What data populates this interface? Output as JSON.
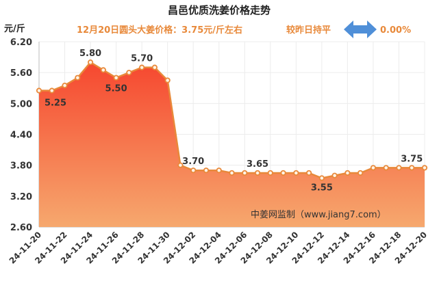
{
  "chart_data": {
    "type": "area",
    "title": "昌邑优质洗姜价格走势",
    "ylabel": "元/斤",
    "price_note": "12月20日圆头大姜价格：3.75元/斤左右",
    "compare_text": "较昨日持平",
    "change_pct": "0.00%",
    "watermark": "中姜网监制（www.jiang7.com）",
    "ylim": [
      2.6,
      6.2
    ],
    "yticks": [
      "6.20",
      "5.60",
      "5.00",
      "4.40",
      "3.80",
      "3.20",
      "2.60"
    ],
    "x": [
      "24-11-20",
      "24-11-21",
      "24-11-22",
      "24-11-23",
      "24-11-24",
      "24-11-25",
      "24-11-26",
      "24-11-27",
      "24-11-28",
      "24-11-29",
      "24-11-30",
      "24-12-01",
      "24-12-02",
      "24-12-03",
      "24-12-04",
      "24-12-05",
      "24-12-06",
      "24-12-07",
      "24-12-08",
      "24-12-09",
      "24-12-10",
      "24-12-11",
      "24-12-12",
      "24-12-13",
      "24-12-14",
      "24-12-15",
      "24-12-16",
      "24-12-17",
      "24-12-18",
      "24-12-19",
      "24-12-20"
    ],
    "xtick_labels": [
      "24-11-20",
      "24-11-22",
      "24-11-24",
      "24-11-26",
      "24-11-28",
      "24-11-30",
      "24-12-02",
      "24-12-04",
      "24-12-06",
      "24-12-08",
      "24-12-10",
      "24-12-12",
      "24-12-14",
      "24-12-16",
      "24-12-18",
      "24-12-20"
    ],
    "values": [
      5.25,
      5.25,
      5.35,
      5.5,
      5.8,
      5.65,
      5.5,
      5.6,
      5.7,
      5.7,
      5.45,
      3.8,
      3.7,
      3.7,
      3.7,
      3.65,
      3.65,
      3.65,
      3.65,
      3.65,
      3.65,
      3.65,
      3.55,
      3.6,
      3.65,
      3.65,
      3.75,
      3.75,
      3.75,
      3.75,
      3.75
    ],
    "data_labels": [
      {
        "index": 0,
        "text": "5.25"
      },
      {
        "index": 4,
        "text": "5.80"
      },
      {
        "index": 6,
        "text": "5.50"
      },
      {
        "index": 8,
        "text": "5.70"
      },
      {
        "index": 12,
        "text": "3.70"
      },
      {
        "index": 17,
        "text": "3.65"
      },
      {
        "index": 22,
        "text": "3.55"
      },
      {
        "index": 29,
        "text": "3.75"
      }
    ],
    "grid": true,
    "colors": {
      "line": "#e8893a",
      "area_top": "#f6472f",
      "area_bottom": "#f6a86e",
      "grid": "#ececec",
      "arrow": "#4f8fd8"
    }
  }
}
